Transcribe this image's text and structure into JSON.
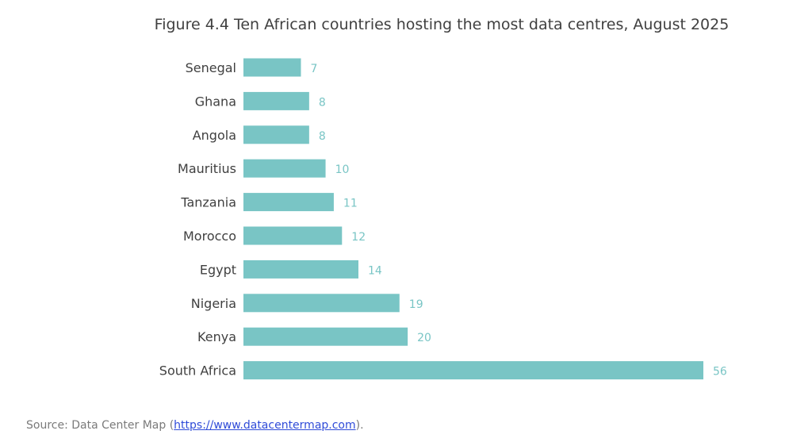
{
  "chart_data": {
    "type": "bar",
    "orientation": "horizontal",
    "title": "Figure 4.4 Ten African countries hosting the most data centres, August 2025",
    "categories": [
      "Senegal",
      "Ghana",
      "Angola",
      "Mauritius",
      "Tanzania",
      "Morocco",
      "Egypt",
      "Nigeria",
      "Kenya",
      "South Africa"
    ],
    "values": [
      7,
      8,
      8,
      10,
      11,
      12,
      14,
      19,
      20,
      56
    ],
    "xlim": [
      0,
      56
    ],
    "grid": false,
    "data_labels": true,
    "bar_color": "#79c5c5",
    "label_color": "#79c5c5"
  },
  "source": {
    "prefix": "Source: Data Center Map (",
    "link_text": "https://www.datacentermap.com",
    "suffix": ")."
  }
}
